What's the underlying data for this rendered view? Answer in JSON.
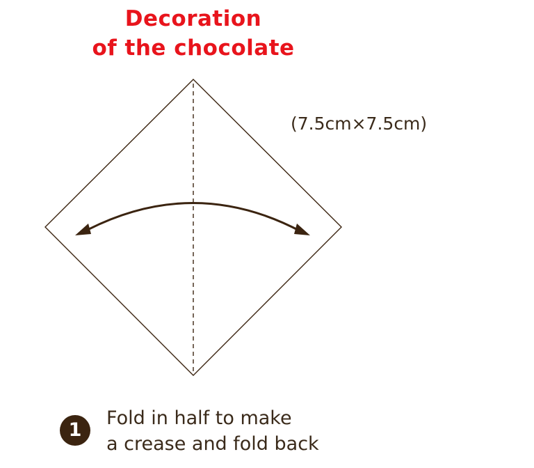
{
  "title": {
    "line1": "Decoration",
    "line2": "of the chocolate"
  },
  "paper_size": "(7.5cm×7.5cm)",
  "step": {
    "number": "1",
    "line1": "Fold in half to make",
    "line2": "a crease and fold back"
  },
  "colors": {
    "title": "#e8141c",
    "outline": "#3b2410",
    "text": "#3a2a1a"
  }
}
